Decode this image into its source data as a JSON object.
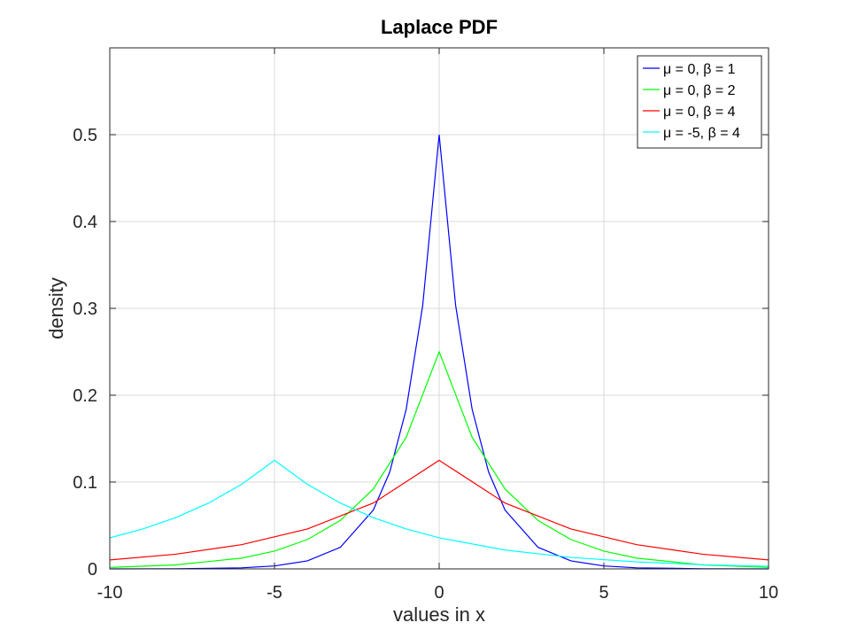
{
  "chart_data": {
    "type": "line",
    "title": "Laplace PDF",
    "xlabel": "values in x",
    "ylabel": "density",
    "xlim": [
      -10,
      10
    ],
    "ylim": [
      0,
      0.6
    ],
    "xticks": [
      -10,
      -5,
      0,
      5,
      10
    ],
    "xtick_labels": [
      "-10",
      "-5",
      "0",
      "5",
      "10"
    ],
    "yticks": [
      0,
      0.1,
      0.2,
      0.3,
      0.4,
      0.5
    ],
    "ytick_labels": [
      "0",
      "0.1",
      "0.2",
      "0.3",
      "0.4",
      "0.5"
    ],
    "grid": true,
    "legend_position": "top-right",
    "series": [
      {
        "name": "μ = 0, β = 1",
        "color": "#0000ff",
        "x": [
          -10,
          -8,
          -6,
          -5,
          -4,
          -3,
          -2,
          -1.5,
          -1,
          -0.5,
          0,
          0.5,
          1,
          1.5,
          2,
          3,
          4,
          5,
          6,
          8,
          10
        ],
        "y": [
          0.0,
          0.0002,
          0.0012,
          0.0034,
          0.0092,
          0.0249,
          0.0677,
          0.1116,
          0.1839,
          0.3033,
          0.5,
          0.3033,
          0.1839,
          0.1116,
          0.0677,
          0.0249,
          0.0092,
          0.0034,
          0.0012,
          0.0002,
          0.0
        ]
      },
      {
        "name": "μ = 0, β = 2",
        "color": "#00ff00",
        "x": [
          -10,
          -8,
          -6,
          -5,
          -4,
          -3,
          -2,
          -1,
          0,
          1,
          2,
          3,
          4,
          5,
          6,
          8,
          10
        ],
        "y": [
          0.0017,
          0.0046,
          0.0124,
          0.0205,
          0.0338,
          0.0558,
          0.092,
          0.1516,
          0.25,
          0.1516,
          0.092,
          0.0558,
          0.0338,
          0.0205,
          0.0124,
          0.0046,
          0.0017
        ]
      },
      {
        "name": "μ = 0, β = 4",
        "color": "#ff0000",
        "x": [
          -10,
          -8,
          -6,
          -4,
          -2,
          0,
          2,
          4,
          6,
          8,
          10
        ],
        "y": [
          0.0103,
          0.0169,
          0.0279,
          0.046,
          0.0758,
          0.125,
          0.0758,
          0.046,
          0.0279,
          0.0169,
          0.0103
        ]
      },
      {
        "name": "μ = -5, β = 4",
        "color": "#00ffff",
        "x": [
          -10,
          -9,
          -8,
          -7,
          -6,
          -5,
          -4,
          -3,
          -2,
          -1,
          0,
          2,
          4,
          6,
          8,
          10
        ],
        "y": [
          0.0358,
          0.046,
          0.059,
          0.0758,
          0.0973,
          0.125,
          0.0973,
          0.0758,
          0.059,
          0.046,
          0.0358,
          0.0217,
          0.0132,
          0.008,
          0.0048,
          0.0029
        ]
      }
    ]
  }
}
